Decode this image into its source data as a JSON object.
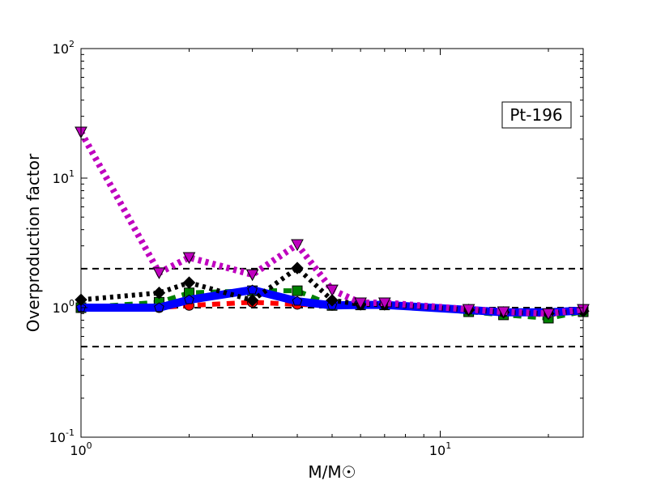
{
  "chart_data": {
    "type": "line",
    "xlabel": "M/M☉",
    "ylabel": "Overproduction factor",
    "xscale": "log",
    "yscale": "log",
    "xlim": [
      1,
      25
    ],
    "ylim": [
      0.1,
      100
    ],
    "x_ticks": [
      {
        "v": 1,
        "base": "10",
        "exp": "0"
      },
      {
        "v": 10,
        "base": "10",
        "exp": "1"
      }
    ],
    "y_ticks": [
      {
        "v": 0.1,
        "base": "10",
        "exp": "-1"
      },
      {
        "v": 1,
        "base": "10",
        "exp": "0"
      },
      {
        "v": 10,
        "base": "10",
        "exp": "1"
      },
      {
        "v": 100,
        "base": "10",
        "exp": "2"
      }
    ],
    "annotation": "Pt-196",
    "annotation_position": "top-right",
    "reference_lines": [
      2,
      1,
      0.5
    ],
    "x": [
      1,
      1.65,
      2,
      3,
      4,
      5,
      6,
      7,
      12,
      15,
      20,
      25
    ],
    "series": [
      {
        "color": "#ff0000",
        "style": "dashed",
        "marker": "circle",
        "values": [
          1.0,
          1.0,
          1.04,
          1.1,
          1.06,
          1.04,
          1.05,
          1.05,
          0.96,
          0.92,
          0.88,
          0.95
        ]
      },
      {
        "color": "#008000",
        "style": "dashed",
        "marker": "square",
        "values": [
          1.0,
          1.1,
          1.3,
          1.35,
          1.35,
          1.04,
          1.05,
          1.05,
          0.93,
          0.88,
          0.83,
          0.93
        ]
      },
      {
        "color": "#0000ff",
        "style": "solid",
        "marker": "pentagon",
        "values": [
          1.0,
          1.0,
          1.15,
          1.37,
          1.12,
          1.04,
          1.05,
          1.05,
          0.96,
          0.92,
          0.92,
          0.95
        ]
      },
      {
        "color": "#000000",
        "style": "dotted",
        "marker": "diamond",
        "values": [
          1.15,
          1.3,
          1.56,
          1.14,
          2.02,
          1.14,
          1.06,
          1.06,
          0.96,
          0.92,
          0.9,
          0.94
        ]
      },
      {
        "color": "#bf00bf",
        "style": "dotted",
        "marker": "triangle-down",
        "values": [
          22.7,
          1.86,
          2.44,
          1.8,
          3.07,
          1.37,
          1.09,
          1.09,
          0.97,
          0.93,
          0.9,
          0.97
        ]
      }
    ]
  }
}
